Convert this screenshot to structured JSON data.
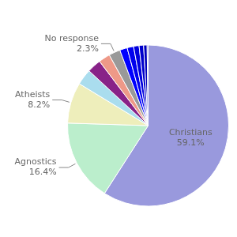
{
  "chart_data": {
    "type": "pie",
    "categories": [
      "Christians",
      "Agnostics",
      "Atheists",
      null,
      null,
      null,
      "No response",
      null,
      null,
      null,
      null,
      null,
      null
    ],
    "values": [
      59.1,
      16.4,
      8.2,
      3.2,
      2.8,
      2.3,
      2.3,
      1.5,
      1.3,
      1.1,
      0.9,
      0.7,
      0.2
    ],
    "value_labels": [
      "59.1%",
      "16.4%",
      "8.2%",
      null,
      null,
      null,
      "2.3%",
      null,
      null,
      null,
      null,
      null,
      null
    ],
    "colors": [
      "#9999dd",
      "#bbeecc",
      "#eeeebb",
      "#aaddee",
      "#882288",
      "#ee9988",
      "#999999",
      "#0000ff",
      "#0000ee",
      "#0000dd",
      "#0000cc",
      "#0000bb",
      "#0000aa"
    ],
    "data_labels": true
  }
}
